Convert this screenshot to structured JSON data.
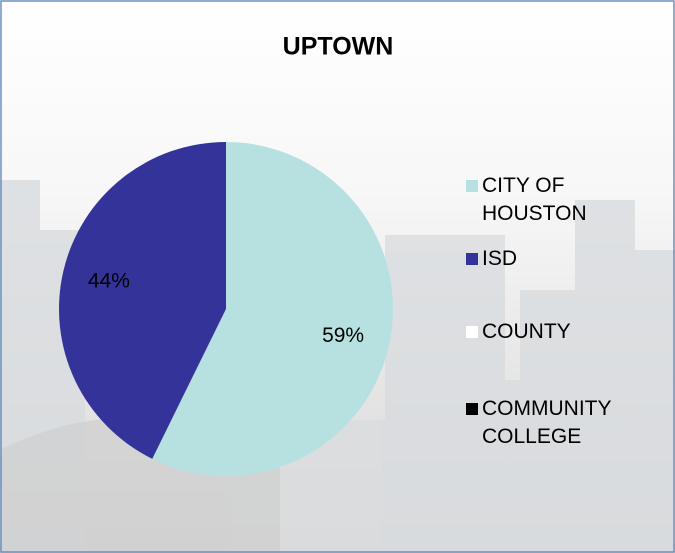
{
  "chart_data": {
    "type": "pie",
    "title": "UPTOWN",
    "categories": [
      "CITY OF HOUSTON",
      "ISD",
      "COUNTY",
      "COMMUNITY COLLEGE"
    ],
    "values": [
      59,
      44,
      0,
      0
    ],
    "value_labels": [
      "59%",
      "44%",
      null,
      null
    ],
    "colors": [
      "#b7e1e1",
      "#333399",
      "#ffffff",
      "#000000"
    ],
    "legend": "right"
  }
}
